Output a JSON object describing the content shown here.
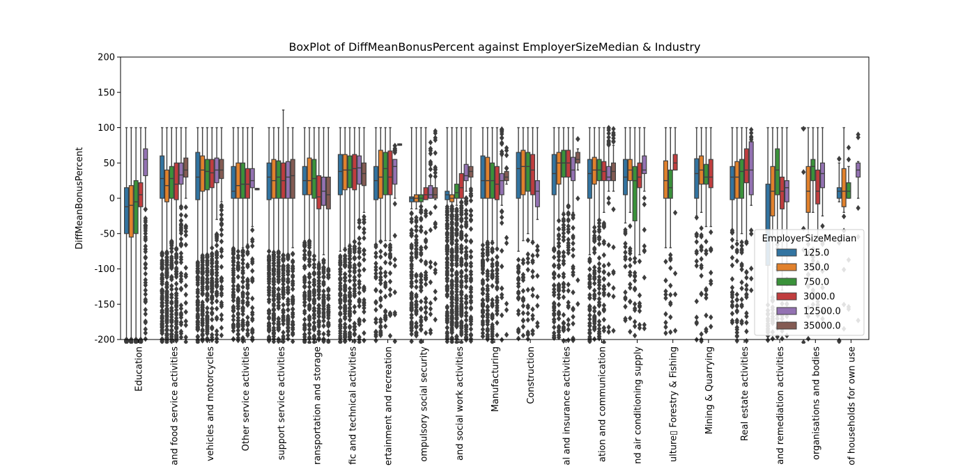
{
  "chart_data": {
    "type": "box",
    "title": "BoxPlot of DiffMeanBonusPercent against EmployerSizeMedian & Industry",
    "xlabel": "",
    "ylabel": "DiffMeanBonusPercent",
    "ylim": [
      -200,
      200
    ],
    "yticks": [
      -200,
      -150,
      -100,
      -50,
      0,
      50,
      100,
      150,
      200
    ],
    "categories": [
      "Education",
      "Accommodation and food service activities",
      "Wholesale and retail trade; repair of motor vehicles and motorcycles",
      "Other service activities",
      "Administrative and support service activities",
      "Transportation and storage",
      "Professional scientific and technical activities",
      "Arts entertainment and recreation",
      "Public administration and defence; compulsory social security",
      "Human health and social work activities",
      "Manufacturing",
      "Construction",
      "Financial and insurance activities",
      "Information and communication",
      "Electricity gas steam and air conditioning supply",
      "Agriculture Forestry & Fishing",
      "Mining & Quarrying",
      "Real estate activities",
      "Water supply sewerage waste management and remediation activities",
      "Activities of extraterritorial organisations and bodies",
      "Activities of households as employers; undifferentiated goods- and services-producing activities of households for own use"
    ],
    "category_display": [
      "Education",
      "and food service activities",
      "vehicles and motorcycles",
      "Other service activities",
      "support service activities",
      "ransportation and storage",
      "fic and technical activities",
      "ertainment and recreation",
      "ompulsory social security",
      "and social work activities",
      "Manufacturing",
      "Construction",
      "al and insurance activities",
      "ation and communication",
      "nd air conditioning supply",
      "ulture▯ Forestry & Fishing",
      "Mining & Quarrying",
      "Real estate activities",
      "and remediation activities",
      " organisations and bodies",
      "of households for own use"
    ],
    "legend": {
      "title": "EmployerSizeMedian",
      "placement": "lower-right",
      "entries": [
        "125.0",
        "350.0",
        "750.0",
        "3000.0",
        "12500.0",
        "35000.0"
      ]
    },
    "series": [
      {
        "name": "125.0",
        "color": "#3274a1"
      },
      {
        "name": "350.0",
        "color": "#e1812c"
      },
      {
        "name": "750.0",
        "color": "#3a923a"
      },
      {
        "name": "3000.0",
        "color": "#c03d3e"
      },
      {
        "name": "12500.0",
        "color": "#9372b2"
      },
      {
        "name": "35000.0",
        "color": "#845b53"
      }
    ],
    "boxes": [
      [
        [
          -50,
          -12,
          15,
          100,
          -200,
          100,
          200
        ],
        [
          -55,
          -10,
          18,
          100,
          -200,
          100,
          150
        ],
        [
          -50,
          -5,
          25,
          100,
          -200,
          100,
          130
        ],
        [
          -12,
          5,
          22,
          100,
          -200,
          100,
          120
        ],
        [
          32,
          55,
          70,
          100,
          -15,
          100,
          40
        ],
        null
      ],
      [
        [
          0,
          28,
          60,
          100,
          -75,
          100,
          90
        ],
        [
          -5,
          18,
          40,
          100,
          -75,
          100,
          90
        ],
        [
          0,
          28,
          45,
          100,
          -60,
          100,
          60
        ],
        [
          -2,
          20,
          50,
          100,
          -70,
          100,
          60
        ],
        [
          20,
          33,
          50,
          100,
          -10,
          100,
          40
        ],
        [
          30,
          40,
          57,
          100,
          0,
          100,
          20
        ]
      ],
      [
        [
          -2,
          30,
          65,
          100,
          -90,
          100,
          70
        ],
        [
          10,
          40,
          60,
          100,
          -80,
          100,
          70
        ],
        [
          12,
          38,
          55,
          100,
          -80,
          100,
          65
        ],
        [
          15,
          36,
          55,
          100,
          -70,
          100,
          55
        ],
        [
          22,
          40,
          57,
          100,
          -30,
          100,
          45
        ],
        [
          28,
          40,
          55,
          100,
          -5,
          100,
          35
        ]
      ],
      [
        [
          0,
          10,
          45,
          100,
          -70,
          100,
          50
        ],
        [
          0,
          18,
          50,
          100,
          -75,
          100,
          45
        ],
        [
          0,
          20,
          50,
          100,
          -70,
          100,
          40
        ],
        [
          0,
          20,
          42,
          100,
          -65,
          100,
          30
        ],
        [
          15,
          25,
          42,
          100,
          -40,
          100,
          25
        ],
        [
          12,
          13,
          14,
          14,
          12,
          0,
          0
        ]
      ],
      [
        [
          -2,
          30,
          50,
          100,
          -75,
          100,
          70
        ],
        [
          0,
          25,
          55,
          100,
          -75,
          100,
          70
        ],
        [
          0,
          30,
          53,
          100,
          -75,
          100,
          60
        ],
        [
          0,
          25,
          50,
          125,
          -80,
          100,
          50
        ],
        [
          0,
          30,
          52,
          100,
          -80,
          100,
          45
        ],
        [
          0,
          32,
          55,
          100,
          -70,
          100,
          40
        ]
      ],
      [
        [
          5,
          25,
          45,
          100,
          -60,
          100,
          60
        ],
        [
          5,
          25,
          57,
          100,
          -60,
          100,
          55
        ],
        [
          0,
          28,
          55,
          100,
          -80,
          100,
          50
        ],
        [
          -15,
          2,
          32,
          100,
          -90,
          100,
          45
        ],
        [
          -10,
          10,
          30,
          100,
          -80,
          100,
          40
        ],
        [
          -15,
          5,
          30,
          100,
          -100,
          100,
          35
        ]
      ],
      [
        [
          5,
          38,
          62,
          100,
          -75,
          100,
          60
        ],
        [
          12,
          40,
          62,
          100,
          -70,
          100,
          55
        ],
        [
          15,
          40,
          60,
          100,
          -65,
          100,
          50
        ],
        [
          12,
          42,
          62,
          100,
          -60,
          100,
          45
        ],
        [
          20,
          43,
          60,
          100,
          -30,
          100,
          35
        ],
        [
          18,
          35,
          50,
          100,
          -20,
          100,
          25
        ]
      ],
      [
        [
          -2,
          25,
          45,
          100,
          -65,
          100,
          25
        ],
        [
          0,
          30,
          68,
          100,
          -60,
          100,
          25
        ],
        [
          5,
          42,
          65,
          100,
          -60,
          100,
          20
        ],
        [
          5,
          30,
          67,
          100,
          -60,
          100,
          20
        ],
        [
          20,
          45,
          55,
          55,
          0,
          100,
          15
        ],
        [
          75,
          76,
          77,
          77,
          75,
          0,
          0
        ]
      ],
      [
        [
          -5,
          0,
          2,
          100,
          -15,
          100,
          60
        ],
        [
          -5,
          0,
          5,
          100,
          -15,
          100,
          50
        ],
        [
          -5,
          0,
          5,
          100,
          -10,
          100,
          40
        ],
        [
          -2,
          5,
          15,
          100,
          0,
          100,
          30
        ],
        [
          0,
          5,
          18,
          30,
          0,
          100,
          20
        ],
        [
          0,
          5,
          15,
          30,
          -2,
          100,
          20
        ]
      ],
      [
        [
          -2,
          5,
          10,
          100,
          -10,
          100,
          100
        ],
        [
          -5,
          0,
          5,
          100,
          -10,
          100,
          120
        ],
        [
          0,
          8,
          20,
          100,
          -10,
          100,
          100
        ],
        [
          0,
          15,
          35,
          100,
          -5,
          100,
          80
        ],
        [
          25,
          32,
          48,
          100,
          10,
          100,
          60
        ],
        [
          30,
          38,
          45,
          100,
          15,
          100,
          50
        ]
      ],
      [
        [
          0,
          25,
          60,
          100,
          -65,
          100,
          50
        ],
        [
          0,
          25,
          58,
          100,
          -60,
          100,
          50
        ],
        [
          0,
          25,
          50,
          100,
          -60,
          100,
          40
        ],
        [
          -2,
          20,
          45,
          100,
          -70,
          100,
          30
        ],
        [
          5,
          25,
          35,
          60,
          -10,
          100,
          25
        ],
        [
          25,
          30,
          38,
          42,
          20,
          100,
          10
        ]
      ],
      [
        [
          0,
          42,
          65,
          100,
          -75,
          100,
          30
        ],
        [
          5,
          45,
          68,
          100,
          -60,
          100,
          20
        ],
        [
          10,
          45,
          65,
          100,
          -50,
          100,
          15
        ],
        [
          5,
          40,
          62,
          100,
          -60,
          100,
          15
        ],
        [
          -12,
          10,
          25,
          100,
          -30,
          100,
          10
        ],
        null
      ],
      [
        [
          5,
          35,
          62,
          100,
          -70,
          100,
          40
        ],
        [
          20,
          50,
          65,
          100,
          -30,
          100,
          40
        ],
        [
          30,
          50,
          68,
          100,
          -20,
          100,
          35
        ],
        [
          30,
          50,
          68,
          100,
          -10,
          100,
          30
        ],
        [
          25,
          40,
          58,
          100,
          -20,
          100,
          20
        ],
        [
          50,
          55,
          65,
          70,
          40,
          100,
          5
        ]
      ],
      [
        [
          0,
          35,
          55,
          100,
          -80,
          100,
          40
        ],
        [
          20,
          40,
          58,
          100,
          -40,
          100,
          40
        ],
        [
          25,
          40,
          55,
          100,
          -30,
          100,
          35
        ],
        [
          25,
          38,
          52,
          100,
          -20,
          100,
          30
        ],
        [
          25,
          30,
          45,
          75,
          10,
          100,
          20
        ],
        [
          25,
          38,
          50,
          75,
          10,
          100,
          15
        ]
      ],
      [
        [
          5,
          30,
          55,
          100,
          -35,
          100,
          15
        ],
        [
          25,
          40,
          55,
          100,
          -20,
          100,
          15
        ],
        [
          -32,
          25,
          45,
          100,
          -85,
          100,
          15
        ],
        [
          15,
          30,
          50,
          100,
          -80,
          100,
          10
        ],
        [
          35,
          40,
          60,
          100,
          10,
          100,
          10
        ],
        null
      ],
      [
        null,
        [
          0,
          25,
          53,
          100,
          -70,
          100,
          10
        ],
        [
          0,
          15,
          40,
          100,
          -70,
          100,
          10
        ],
        [
          40,
          50,
          62,
          100,
          40,
          100,
          5
        ],
        null,
        null
      ],
      [
        [
          0,
          35,
          56,
          100,
          -25,
          100,
          15
        ],
        [
          20,
          40,
          60,
          100,
          -20,
          100,
          15
        ],
        [
          20,
          30,
          48,
          100,
          -40,
          100,
          10
        ],
        [
          15,
          30,
          55,
          100,
          -40,
          100,
          10
        ],
        null,
        null
      ],
      [
        [
          -2,
          30,
          45,
          100,
          -45,
          100,
          20
        ],
        [
          0,
          30,
          52,
          100,
          -60,
          100,
          20
        ],
        [
          0,
          38,
          55,
          100,
          -50,
          100,
          15
        ],
        [
          22,
          40,
          70,
          100,
          -60,
          100,
          15
        ],
        [
          5,
          40,
          80,
          80,
          -10,
          100,
          10
        ],
        null
      ],
      [
        [
          -95,
          -45,
          20,
          100,
          -150,
          100,
          20
        ],
        [
          -25,
          10,
          45,
          100,
          -140,
          100,
          15
        ],
        [
          5,
          40,
          70,
          100,
          -60,
          100,
          10
        ],
        [
          -15,
          10,
          30,
          100,
          -130,
          100,
          10
        ],
        [
          -5,
          15,
          25,
          100,
          -90,
          100,
          10
        ],
        null
      ],
      [
        [
          100,
          100,
          100,
          100,
          100,
          0,
          5
        ],
        [
          -20,
          10,
          45,
          100,
          -50,
          100,
          10
        ],
        [
          25,
          45,
          55,
          100,
          -20,
          100,
          8
        ],
        [
          -8,
          10,
          40,
          100,
          -60,
          100,
          8
        ],
        [
          15,
          35,
          50,
          100,
          -25,
          100,
          8
        ],
        null
      ],
      [
        [
          0,
          10,
          15,
          50,
          -5,
          100,
          5
        ],
        [
          -12,
          10,
          42,
          100,
          -20,
          100,
          5
        ],
        [
          0,
          10,
          22,
          45,
          0,
          100,
          5
        ],
        null,
        [
          30,
          40,
          50,
          52,
          0,
          100,
          5
        ],
        null
      ]
    ],
    "box_format": "[q1, median, q3, upper_whisker, lower_whisker, outlier_max, outlier_count]"
  }
}
